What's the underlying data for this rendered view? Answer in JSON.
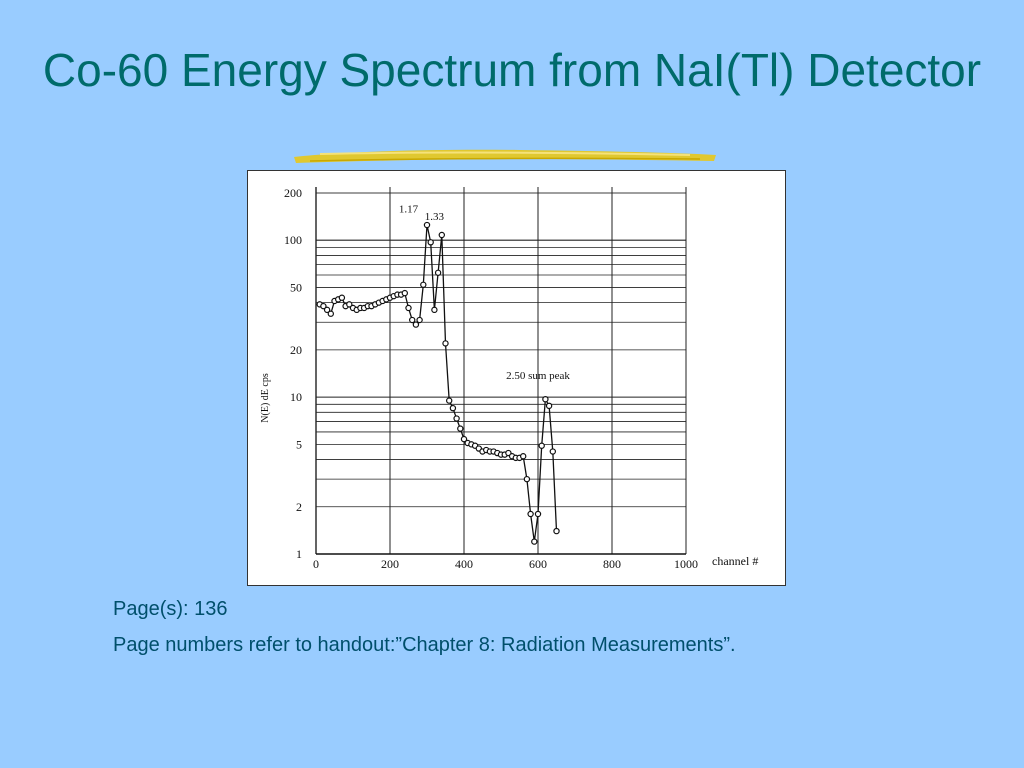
{
  "slide": {
    "title": "Co-60 Energy Spectrum from NaI(Tl) Detector",
    "pages_line": "Page(s): 136",
    "note_line": "Page numbers refer to handout:”Chapter 8: Radiation Measurements”.",
    "title_color": "#006b6b",
    "background_color": "#99ccff",
    "underline_color": "#e8c81a"
  },
  "chart_data": {
    "type": "scatter",
    "xlabel": "channel #",
    "ylabel": "N(E) dE cps",
    "xlim": [
      0,
      1000
    ],
    "ylim": [
      1,
      200
    ],
    "yscale": "log",
    "grid": true,
    "x_ticks": [
      0,
      200,
      400,
      600,
      800,
      1000
    ],
    "y_ticks": [
      1,
      2,
      5,
      10,
      20,
      50,
      100,
      200
    ],
    "annotations": [
      {
        "text": "1.17",
        "x": 250,
        "y": 150
      },
      {
        "text": "1.33",
        "x": 320,
        "y": 135
      },
      {
        "text": "2.50 sum peak",
        "x": 600,
        "y": 13
      }
    ],
    "series": [
      {
        "x": [
          10,
          20,
          30,
          40,
          50,
          60,
          70,
          80,
          90,
          100,
          110,
          120,
          130,
          140,
          150,
          160,
          170,
          180,
          190,
          200,
          210,
          220,
          230,
          240,
          250,
          260,
          270,
          280,
          290,
          300,
          310,
          320,
          330,
          340,
          350,
          360,
          370,
          380,
          390,
          400,
          410,
          420,
          430,
          440,
          450,
          460,
          470,
          480,
          490,
          500,
          510,
          520,
          530,
          540,
          550,
          560,
          570,
          580,
          590,
          600,
          610,
          620,
          630,
          640,
          650
        ],
        "y": [
          39,
          38,
          36,
          34,
          41,
          42,
          43,
          38,
          39,
          37,
          36,
          37,
          37,
          38,
          38,
          39,
          40,
          41,
          42,
          43,
          44,
          45,
          45,
          46,
          37,
          31,
          29,
          31,
          52,
          125,
          97,
          36,
          62,
          108,
          22,
          9.5,
          8.5,
          7.3,
          6.3,
          5.4,
          5.1,
          5.0,
          4.9,
          4.7,
          4.5,
          4.6,
          4.5,
          4.5,
          4.4,
          4.3,
          4.3,
          4.4,
          4.2,
          4.1,
          4.1,
          4.2,
          3.0,
          1.8,
          1.2,
          1.8,
          4.9,
          9.7,
          8.8,
          4.5,
          1.4
        ]
      }
    ]
  }
}
